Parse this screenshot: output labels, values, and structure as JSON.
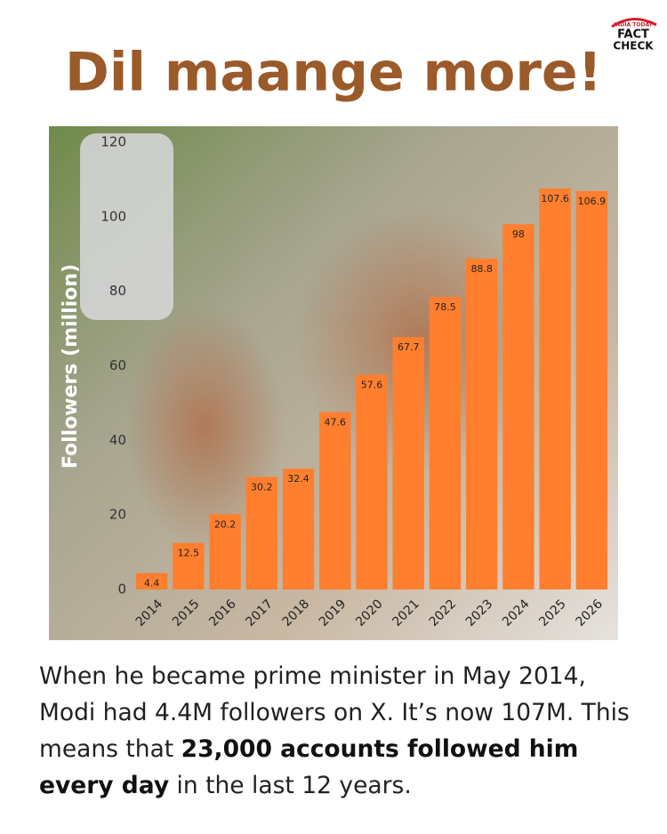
{
  "chart_data": {
    "type": "bar",
    "title": "Dil maange more!",
    "y_label": "Followers (million)",
    "categories": [
      "2014",
      "2015",
      "2016",
      "2017",
      "2018",
      "2019",
      "2020",
      "2021",
      "2022",
      "2023",
      "2024",
      "2025",
      "2026"
    ],
    "values": [
      4.4,
      12.5,
      20.2,
      30.2,
      32.4,
      47.6,
      57.6,
      67.7,
      78.5,
      88.8,
      98,
      107.6,
      106.9
    ],
    "color": "#ff7f2e",
    "ylim": [
      0,
      120
    ],
    "yticks": [
      0,
      20,
      40,
      60,
      80,
      100,
      120
    ],
    "grid": false
  },
  "logo": {
    "top": "INDIA TODAY",
    "line1": "FACT",
    "line2": "CHECK"
  },
  "caption": [
    {
      "text": "When he became prime minister in May 2014, Modi had 4.4M followers on X. It’s now 107M. This means that ",
      "bold": false
    },
    {
      "text": "23,000 accounts followed him every day",
      "bold": true
    },
    {
      "text": " in the last 12 years.",
      "bold": false
    }
  ]
}
